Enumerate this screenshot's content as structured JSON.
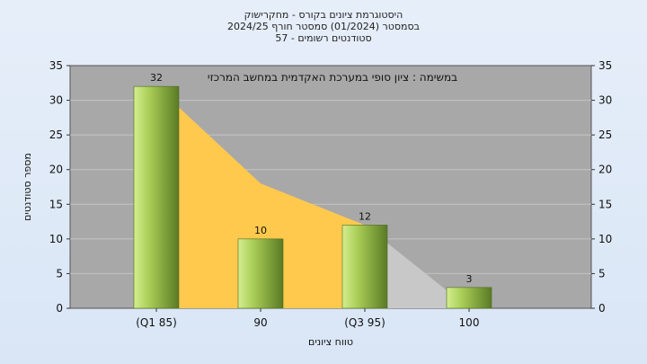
{
  "header": {
    "title_line1": "היסטוגרמת ציונים בקורס - מחקרישוק",
    "title_line2": "בסמסטר  (01/2024)  סמסטר חורף 2024/25",
    "title_line3": "סטודנטים רשומים - 57"
  },
  "chart_data": {
    "type": "bar",
    "categories": [
      "(Q1 85)",
      "90",
      "(Q3 95)",
      "100"
    ],
    "values": [
      32,
      10,
      12,
      3
    ],
    "area_series": [
      32,
      18,
      12,
      0
    ],
    "title": "היסטוגרמת ציונים בקורס - מחקרישוק",
    "annotation": "במשימה : ציון סופי במערכת האקדמית במחשב המרכזי",
    "xlabel": "טווח ציונים",
    "ylabel": "מספר סטודנטים",
    "ylim": [
      0,
      35
    ],
    "yticks": [
      0,
      5,
      10,
      15,
      20,
      25,
      30,
      35
    ],
    "grid": true,
    "colors": {
      "plot_bg": "#a8a8a8",
      "area_fill": "#ffc94d",
      "area_tail": "#c8c8c8",
      "bar_light": "#d4ee90",
      "bar_mid": "#a8cc55",
      "bar_dark": "#5a7a25"
    }
  }
}
